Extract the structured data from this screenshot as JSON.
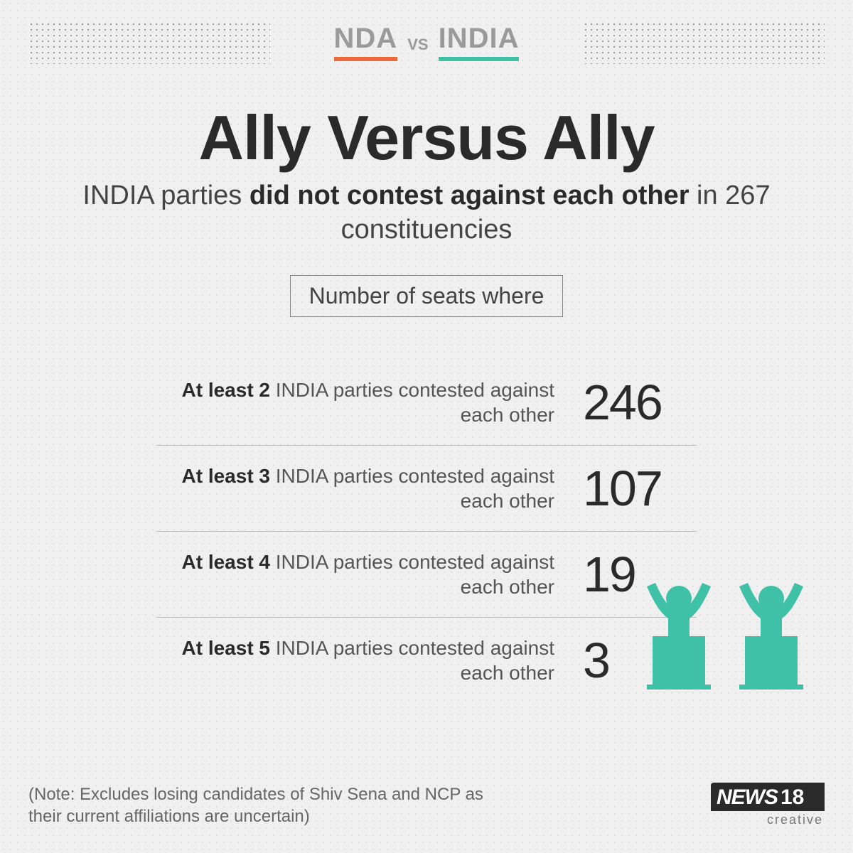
{
  "colors": {
    "nda_accent": "#e86a3a",
    "india_accent": "#3fc1a8",
    "text_dark": "#2a2a2a",
    "text_mid": "#555",
    "text_light": "#9a9a9a",
    "background": "#f0f0f0",
    "divider": "#bbb"
  },
  "header": {
    "left_party": "NDA",
    "vs": "VS",
    "right_party": "INDIA"
  },
  "title": "Ally Versus Ally",
  "subtitle_prefix": "INDIA parties ",
  "subtitle_bold": "did not contest against each other",
  "subtitle_suffix": " in 267 constituencies",
  "tag": "Number of seats where",
  "rows": [
    {
      "bold": "At least 2",
      "rest": " INDIA parties contested against each other",
      "value": "246"
    },
    {
      "bold": "At least 3",
      "rest": " INDIA parties contested against each other",
      "value": "107"
    },
    {
      "bold": "At least 4",
      "rest": " INDIA parties contested against each other",
      "value": "19"
    },
    {
      "bold": "At least 5",
      "rest": " INDIA parties contested against each other",
      "value": "3"
    }
  ],
  "note": "(Note: Excludes losing candidates of Shiv Sena and NCP as their current affiliations are uncertain)",
  "logo": {
    "news": "NEWS",
    "num": "18",
    "sub": "creative"
  },
  "speaker_icon_color": "#3fc1a8"
}
